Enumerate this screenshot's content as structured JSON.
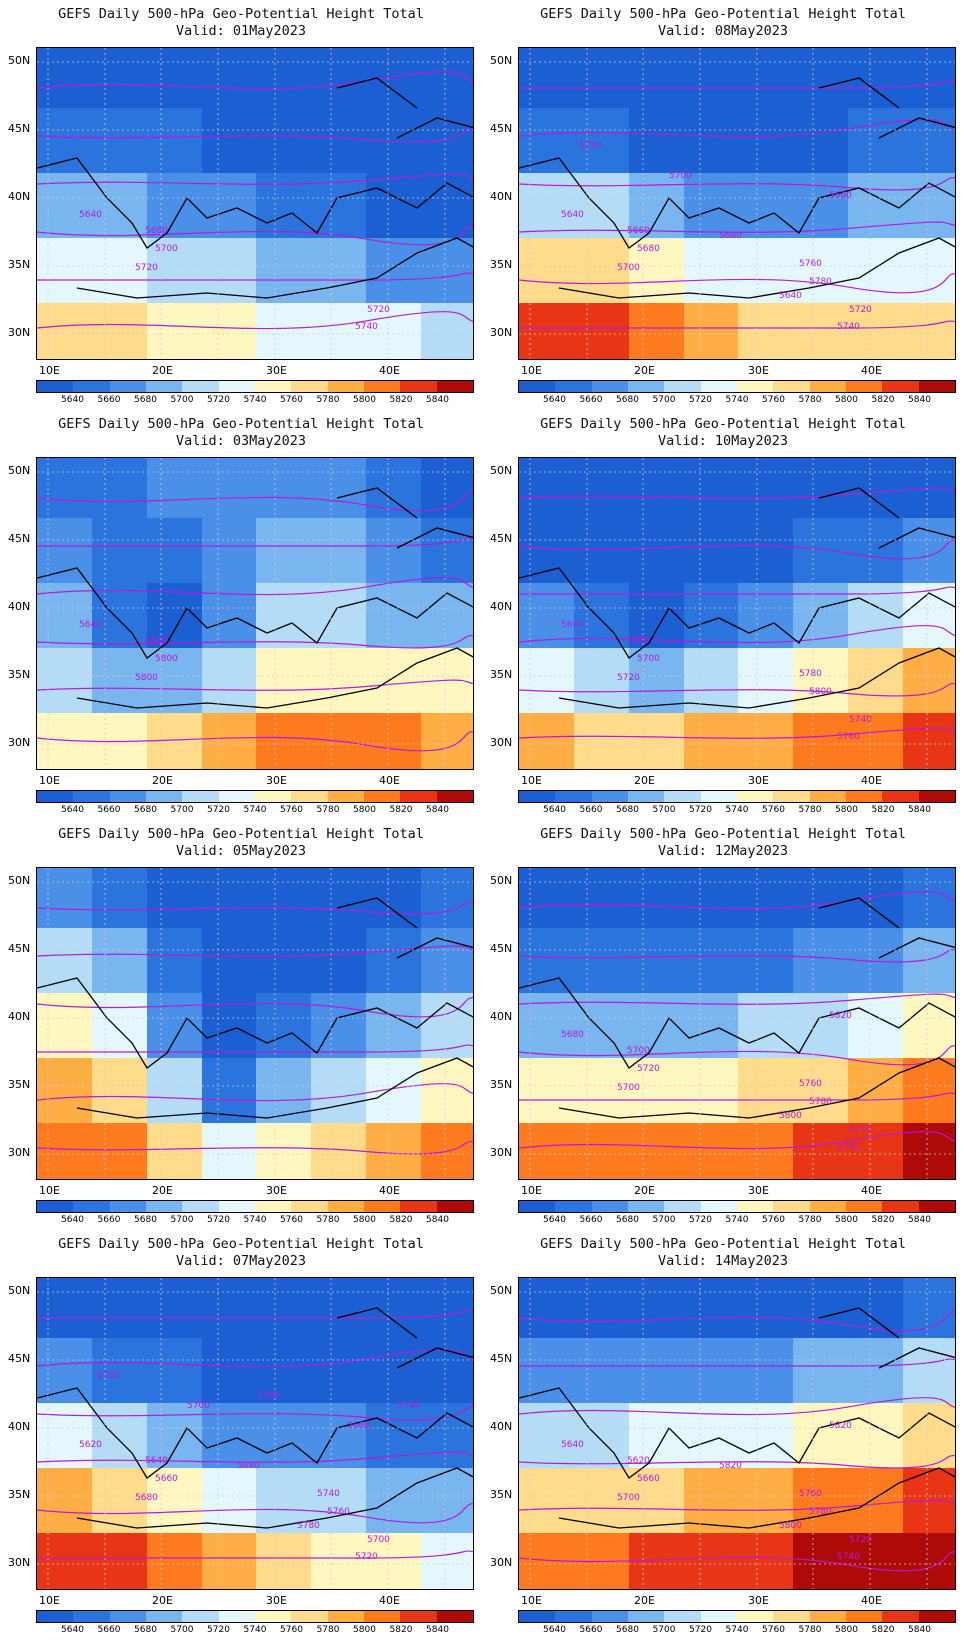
{
  "colorbar": {
    "labels": [
      "5640",
      "5660",
      "5680",
      "5700",
      "5720",
      "5740",
      "5760",
      "5780",
      "5800",
      "5820",
      "5840"
    ],
    "colors": [
      "#1b5fd2",
      "#2b73dd",
      "#4a90e8",
      "#79b5ef",
      "#b4dcf6",
      "#e3f7fd",
      "#fff6c0",
      "#ffdc8c",
      "#ffae45",
      "#fe7a1e",
      "#e83515",
      "#ae0a08"
    ]
  },
  "axes": {
    "lat_labels": [
      "50N",
      "45N",
      "40N",
      "35N",
      "30N"
    ],
    "lon_labels": [
      "10E",
      "20E",
      "30E",
      "40E"
    ]
  },
  "contour_color": "#b61bd8",
  "panels": [
    {
      "title": "GEFS Daily 500-hPa Geo-Potential Height Total",
      "valid": "Valid: 01May2023",
      "labels": [
        "5640",
        "5680",
        "5700",
        "5720",
        "5720",
        "5740"
      ],
      "bands": [
        [
          0,
          0,
          0,
          0,
          0,
          0,
          0,
          0,
          0
        ],
        [
          1,
          1,
          1,
          0,
          0,
          0,
          0,
          0,
          0
        ],
        [
          3,
          3,
          2,
          2,
          1,
          1,
          0,
          0,
          0
        ],
        [
          5,
          5,
          4,
          4,
          3,
          3,
          2,
          2,
          2
        ],
        [
          7,
          7,
          6,
          6,
          5,
          5,
          5,
          4,
          4
        ]
      ]
    },
    {
      "title": "GEFS Daily 500-hPa Geo-Potential Height Total",
      "valid": "Valid: 08May2023",
      "labels": [
        "5640",
        "5660",
        "5680",
        "5700",
        "5720",
        "5740",
        "5760",
        "5780",
        "5640",
        "5660",
        "5680",
        "5700",
        "5720"
      ],
      "bands": [
        [
          0,
          0,
          0,
          0,
          0,
          0,
          0,
          0,
          0
        ],
        [
          1,
          1,
          0,
          0,
          0,
          0,
          1,
          1,
          1
        ],
        [
          4,
          4,
          3,
          2,
          2,
          2,
          3,
          3,
          3
        ],
        [
          7,
          7,
          6,
          5,
          5,
          5,
          5,
          5,
          5
        ],
        [
          10,
          10,
          9,
          8,
          7,
          7,
          7,
          7,
          7
        ]
      ]
    },
    {
      "title": "GEFS Daily 500-hPa Geo-Potential Height Total",
      "valid": "Valid: 03May2023",
      "labels": [
        "5640",
        "5640",
        "5800",
        "5800"
      ],
      "bands": [
        [
          1,
          1,
          2,
          2,
          2,
          2,
          1,
          0,
          0
        ],
        [
          2,
          1,
          1,
          2,
          3,
          3,
          2,
          1,
          0
        ],
        [
          3,
          1,
          0,
          2,
          4,
          4,
          3,
          3,
          2
        ],
        [
          4,
          3,
          3,
          4,
          6,
          6,
          6,
          6,
          5
        ],
        [
          6,
          6,
          7,
          8,
          9,
          9,
          9,
          8,
          8
        ]
      ]
    },
    {
      "title": "GEFS Daily 500-hPa Geo-Potential Height Total",
      "valid": "Valid: 10May2023",
      "labels": [
        "5660",
        "5680",
        "5700",
        "5720",
        "5740",
        "5760",
        "5780",
        "5800"
      ],
      "bands": [
        [
          0,
          0,
          0,
          0,
          0,
          0,
          0,
          0,
          0
        ],
        [
          0,
          0,
          0,
          0,
          0,
          1,
          1,
          2,
          2
        ],
        [
          2,
          1,
          0,
          1,
          2,
          3,
          4,
          5,
          5
        ],
        [
          5,
          4,
          3,
          4,
          5,
          6,
          7,
          8,
          8
        ],
        [
          8,
          7,
          7,
          8,
          8,
          9,
          9,
          10,
          10
        ]
      ]
    },
    {
      "title": "GEFS Daily 500-hPa Geo-Potential Height Total",
      "valid": "Valid: 05May2023",
      "labels": [],
      "bands": [
        [
          2,
          1,
          0,
          0,
          0,
          0,
          0,
          1,
          1
        ],
        [
          4,
          3,
          1,
          0,
          0,
          0,
          1,
          2,
          3
        ],
        [
          6,
          5,
          2,
          0,
          1,
          2,
          3,
          4,
          5
        ],
        [
          8,
          7,
          4,
          1,
          3,
          4,
          5,
          6,
          7
        ],
        [
          9,
          9,
          7,
          5,
          6,
          7,
          8,
          9,
          10
        ]
      ]
    },
    {
      "title": "GEFS Daily 500-hPa Geo-Potential Height Total",
      "valid": "Valid: 12May2023",
      "labels": [
        "5680",
        "5700",
        "5720",
        "5700",
        "5720",
        "5740",
        "5760",
        "5780",
        "5800",
        "5820"
      ],
      "bands": [
        [
          0,
          0,
          0,
          0,
          0,
          0,
          0,
          1,
          1
        ],
        [
          1,
          1,
          1,
          1,
          1,
          2,
          2,
          3,
          3
        ],
        [
          3,
          3,
          3,
          3,
          4,
          4,
          5,
          6,
          6
        ],
        [
          6,
          6,
          6,
          6,
          7,
          7,
          8,
          9,
          9
        ],
        [
          9,
          9,
          9,
          9,
          9,
          10,
          10,
          11,
          11
        ]
      ]
    },
    {
      "title": "GEFS Daily 500-hPa Geo-Potential Height Total",
      "valid": "Valid: 07May2023",
      "labels": [
        "5620",
        "5640",
        "5660",
        "5680",
        "5700",
        "5720",
        "5740",
        "5760",
        "5780",
        "5660",
        "5680",
        "5700",
        "5720",
        "5740",
        "5760"
      ],
      "bands": [
        [
          0,
          0,
          0,
          0,
          0,
          0,
          0,
          0,
          0
        ],
        [
          2,
          1,
          1,
          0,
          0,
          0,
          0,
          0,
          0
        ],
        [
          5,
          4,
          3,
          2,
          2,
          2,
          1,
          1,
          0
        ],
        [
          8,
          7,
          6,
          5,
          4,
          4,
          3,
          3,
          3
        ],
        [
          10,
          10,
          9,
          8,
          7,
          6,
          6,
          5,
          5
        ]
      ]
    },
    {
      "title": "GEFS Daily 500-hPa Geo-Potential Height Total",
      "valid": "Valid: 14May2023",
      "labels": [
        "5640",
        "5620",
        "5660",
        "5700",
        "5720",
        "5740",
        "5760",
        "5780",
        "5800",
        "5820",
        "5820"
      ],
      "bands": [
        [
          0,
          0,
          0,
          0,
          0,
          0,
          0,
          1,
          1
        ],
        [
          2,
          2,
          2,
          2,
          2,
          3,
          3,
          4,
          4
        ],
        [
          4,
          4,
          5,
          5,
          5,
          6,
          6,
          7,
          7
        ],
        [
          7,
          7,
          7,
          8,
          8,
          9,
          9,
          10,
          10
        ],
        [
          9,
          9,
          10,
          10,
          10,
          11,
          11,
          11,
          11
        ]
      ]
    }
  ]
}
